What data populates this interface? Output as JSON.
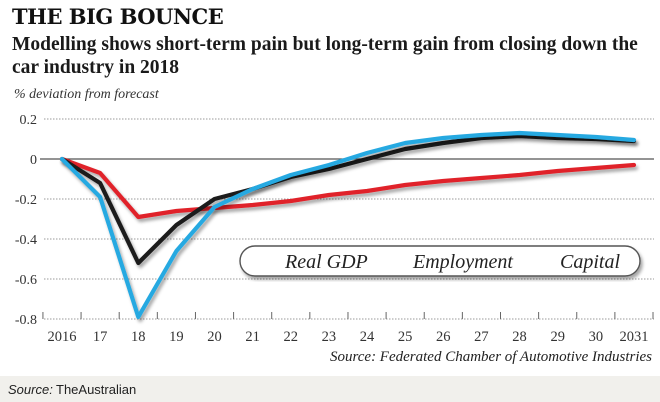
{
  "header": {
    "title": "THE BIG BOUNCE",
    "subtitle": "Modelling shows short-term pain but long-term gain from closing down the car industry in 2018",
    "units": "% deviation from forecast"
  },
  "chart_data": {
    "type": "line",
    "title": "THE BIG BOUNCE",
    "subtitle": "Modelling shows short-term pain but long-term gain from closing down the car industry in 2018",
    "ylabel": "% deviation from forecast",
    "xlabel": "",
    "x": [
      2016,
      2017,
      2018,
      2019,
      2020,
      2021,
      2022,
      2023,
      2024,
      2025,
      2026,
      2027,
      2028,
      2029,
      2030,
      2031
    ],
    "x_tick_labels": [
      "2016",
      "17",
      "18",
      "19",
      "20",
      "21",
      "22",
      "23",
      "24",
      "25",
      "26",
      "27",
      "28",
      "29",
      "30",
      "2031"
    ],
    "y_ticks": [
      0.2,
      0,
      -0.2,
      -0.4,
      -0.6,
      -0.8
    ],
    "y_tick_labels": [
      "0.2",
      "0",
      "-0.2",
      "-0.4",
      "-0.6",
      "-0.8"
    ],
    "ylim": [
      -0.8,
      0.2
    ],
    "grid": true,
    "legend_position": "bottom-right",
    "series": [
      {
        "name": "Real GDP",
        "color": "#1a1a1a",
        "values": [
          0,
          -0.12,
          -0.52,
          -0.33,
          -0.2,
          -0.15,
          -0.09,
          -0.05,
          0.0,
          0.05,
          0.08,
          0.105,
          0.115,
          0.105,
          0.1,
          0.09
        ]
      },
      {
        "name": "Employment",
        "color": "#27a9e1",
        "values": [
          0,
          -0.19,
          -0.79,
          -0.46,
          -0.24,
          -0.15,
          -0.08,
          -0.03,
          0.03,
          0.08,
          0.105,
          0.12,
          0.13,
          0.12,
          0.11,
          0.095
        ]
      },
      {
        "name": "Capital",
        "color": "#e0242b",
        "values": [
          0,
          -0.07,
          -0.29,
          -0.26,
          -0.245,
          -0.23,
          -0.21,
          -0.18,
          -0.16,
          -0.13,
          -0.11,
          -0.095,
          -0.08,
          -0.06,
          -0.045,
          -0.03
        ]
      }
    ],
    "source": "Source: Federated Chamber of Automotive Industries"
  },
  "footer": {
    "source_label": "Source:",
    "source_value": "TheAustralian"
  }
}
